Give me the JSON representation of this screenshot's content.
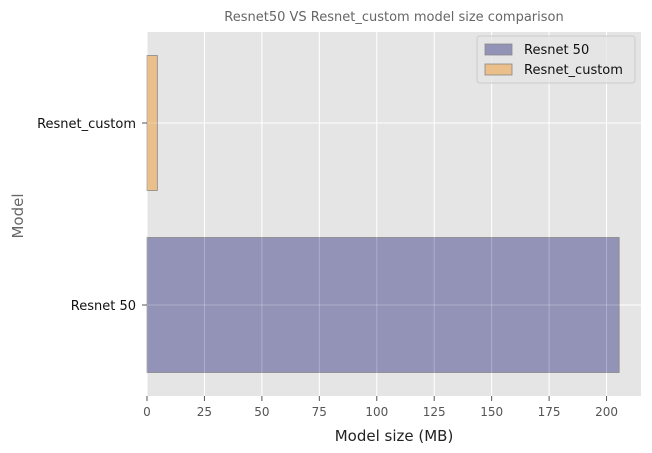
{
  "chart_data": {
    "type": "bar",
    "orientation": "horizontal",
    "title": "Resnet50 VS Resnet_custom model size comparison",
    "xlabel": "Model size (MB)",
    "ylabel": "Model",
    "categories": [
      "Resnet 50",
      "Resnet_custom"
    ],
    "series": [
      {
        "name": "Resnet 50",
        "category": "Resnet 50",
        "value": 205.5,
        "color": "#9393b7"
      },
      {
        "name": "Resnet_custom",
        "category": "Resnet_custom",
        "value": 4.5,
        "color": "#eabf8a"
      }
    ],
    "xlim": [
      0,
      215
    ],
    "xticks": [
      0,
      25,
      50,
      75,
      100,
      125,
      150,
      175,
      200
    ],
    "grid": true,
    "legend_position": "top-right",
    "colors": {
      "plot_background": "#e5e5e5",
      "grid": "#ffffff",
      "text": "#555555",
      "edge": "#888888"
    }
  }
}
